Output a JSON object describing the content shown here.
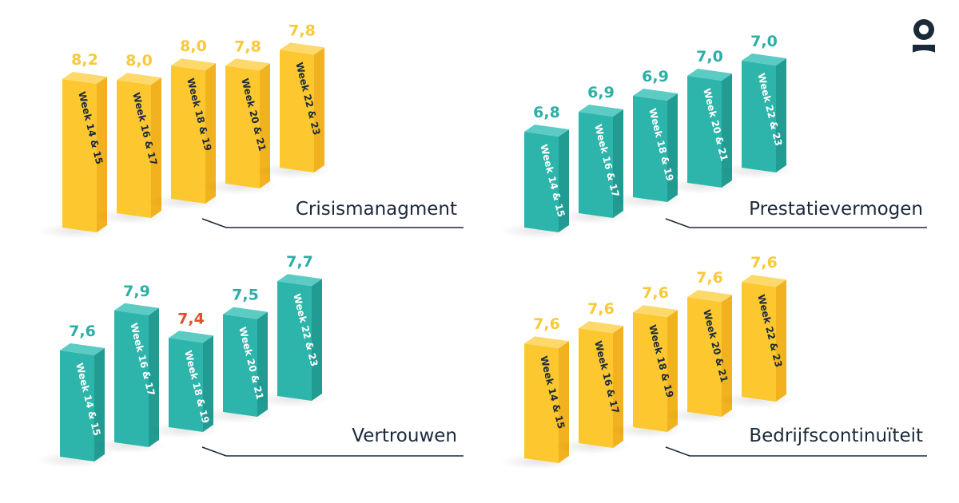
{
  "brand": {
    "logo_icon": "person-pin-logo-icon"
  },
  "colors": {
    "yellow": "#f8c22f",
    "teal": "#2bafa6",
    "highlight": "#e0502a",
    "ink": "#1b2a3a"
  },
  "chart_data": [
    {
      "type": "bar",
      "title": "Crisismanagment",
      "color": "yellow",
      "categories": [
        "Week 14 & 15",
        "Week 16 & 17",
        "Week 18 & 19",
        "Week 20 & 21",
        "Week 22 & 23"
      ],
      "values": [
        8.2,
        8.0,
        8.0,
        7.8,
        7.8
      ],
      "value_labels": [
        "8,2",
        "8,0",
        "8,0",
        "7,8",
        "7,8"
      ]
    },
    {
      "type": "bar",
      "title": "Prestatievermogen",
      "color": "teal",
      "categories": [
        "Week 14 & 15",
        "Week 16 & 17",
        "Week 18 & 19",
        "Week 20 & 21",
        "Week 22 & 23"
      ],
      "values": [
        6.8,
        6.9,
        6.9,
        7.0,
        7.0
      ],
      "value_labels": [
        "6,8",
        "6,9",
        "6,9",
        "7,0",
        "7,0"
      ]
    },
    {
      "type": "bar",
      "title": "Vertrouwen",
      "color": "teal",
      "categories": [
        "Week 14 & 15",
        "Week 16 & 17",
        "Week 18 & 19",
        "Week 20 & 21",
        "Week 22 & 23"
      ],
      "values": [
        7.6,
        7.9,
        7.4,
        7.5,
        7.7
      ],
      "value_labels": [
        "7,6",
        "7,9",
        "7,4",
        "7,5",
        "7,7"
      ],
      "highlighted_index": 2
    },
    {
      "type": "bar",
      "title": "Bedrijfscontinuïteit",
      "color": "yellow",
      "categories": [
        "Week 14 & 15",
        "Week 16 & 17",
        "Week 18 & 19",
        "Week 20 & 21",
        "Week 22 & 23"
      ],
      "values": [
        7.6,
        7.6,
        7.6,
        7.6,
        7.6
      ],
      "value_labels": [
        "7,6",
        "7,6",
        "7,6",
        "7,6",
        "7,6"
      ]
    }
  ]
}
